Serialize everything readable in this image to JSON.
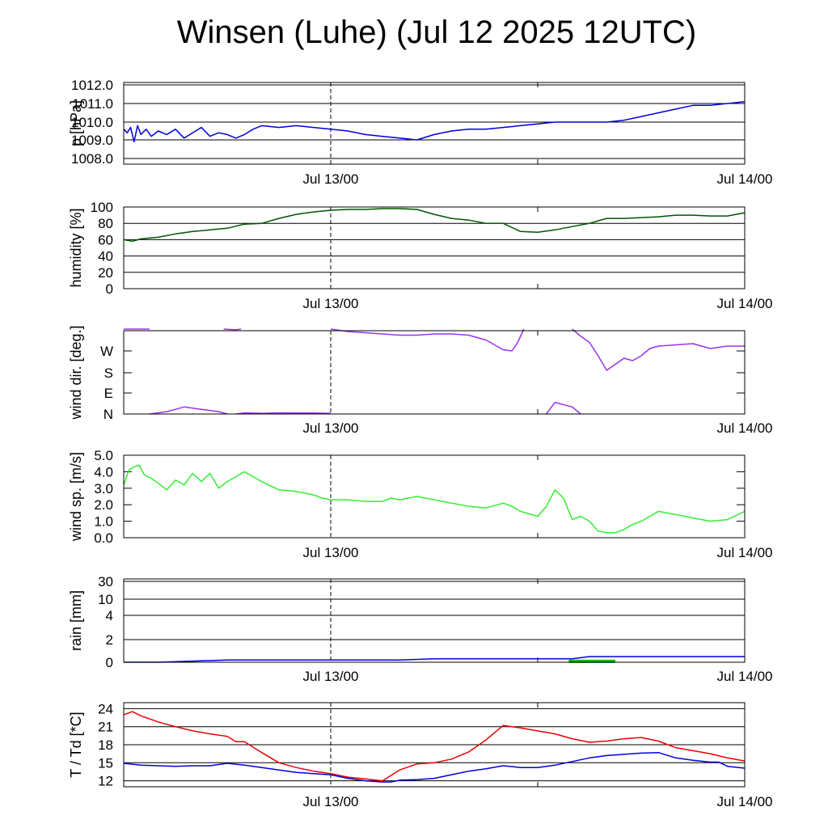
{
  "title": "Winsen (Luhe) (Jul 12 2025 12UTC)",
  "chart_data": [
    {
      "type": "line",
      "ylabel": "p [hPa]",
      "yticks": [
        "1012.0",
        "1011.0",
        "1010.0",
        "1009.0",
        "1008.0"
      ],
      "ytick_values": [
        1012,
        1011,
        1010,
        1009,
        1008
      ],
      "ylim": [
        1007.7,
        1012.1
      ],
      "xticks": [
        "Jul 13/00",
        "Jul 14/00"
      ],
      "x_unit": "hours since Jul 12 12UTC",
      "xlim": [
        0,
        36
      ],
      "series": [
        {
          "color": "#0000dd",
          "x": [
            0,
            0.2,
            0.4,
            0.6,
            0.8,
            1.0,
            1.3,
            1.6,
            2,
            2.5,
            3,
            3.5,
            4,
            4.5,
            5,
            5.5,
            6,
            6.5,
            7,
            7.5,
            8,
            9,
            10,
            11,
            12,
            13,
            14,
            15,
            16,
            17,
            18,
            19,
            20,
            21,
            22,
            23,
            24,
            25,
            26,
            27,
            28,
            29,
            30,
            31,
            32,
            33,
            34,
            35,
            36
          ],
          "y": [
            1009.6,
            1009.4,
            1009.7,
            1008.9,
            1009.8,
            1009.3,
            1009.6,
            1009.2,
            1009.5,
            1009.3,
            1009.6,
            1009.1,
            1009.4,
            1009.7,
            1009.2,
            1009.4,
            1009.3,
            1009.1,
            1009.3,
            1009.6,
            1009.8,
            1009.7,
            1009.8,
            1009.7,
            1009.6,
            1009.5,
            1009.3,
            1009.2,
            1009.1,
            1009.0,
            1009.3,
            1009.5,
            1009.6,
            1009.6,
            1009.7,
            1009.8,
            1009.9,
            1010.0,
            1010.0,
            1010.0,
            1010.0,
            1010.1,
            1010.3,
            1010.5,
            1010.7,
            1010.9,
            1010.9,
            1011.0,
            1011.1
          ]
        }
      ]
    },
    {
      "type": "line",
      "ylabel": "humidity [%]",
      "yticks": [
        "100",
        "80",
        "60",
        "40",
        "20",
        "0"
      ],
      "ytick_values": [
        100,
        80,
        60,
        40,
        20,
        0
      ],
      "ylim": [
        0,
        100
      ],
      "xticks": [
        "Jul 13/00",
        "Jul 14/00"
      ],
      "x_unit": "hours since Jul 12 12UTC",
      "xlim": [
        0,
        36
      ],
      "series": [
        {
          "color": "#005500",
          "x": [
            0,
            0.5,
            1,
            2,
            3,
            4,
            5,
            6,
            7,
            8,
            9,
            10,
            11,
            12,
            13,
            14,
            15,
            16,
            17,
            18,
            19,
            20,
            21,
            22,
            22.5,
            23,
            24,
            25,
            26,
            27,
            28,
            29,
            30,
            31,
            32,
            33,
            34,
            35,
            36
          ],
          "y": [
            60,
            58,
            61,
            63,
            67,
            70,
            72,
            74,
            79,
            80,
            86,
            91,
            94,
            96,
            97,
            97,
            98,
            98,
            97,
            91,
            86,
            84,
            80,
            80,
            75,
            70,
            69,
            72,
            76,
            80,
            86,
            86,
            87,
            88,
            90,
            90,
            89,
            89,
            93
          ]
        }
      ]
    },
    {
      "type": "line",
      "ylabel": "wind dir. [deg.]",
      "yticks": [
        "W",
        "S",
        "E",
        "N"
      ],
      "ytick_values": [
        270,
        180,
        90,
        0
      ],
      "ylim": [
        0,
        360
      ],
      "xticks": [
        "Jul 13/00",
        "Jul 14/00"
      ],
      "x_unit": "hours since Jul 12 12UTC",
      "xlim": [
        0,
        36
      ],
      "series": [
        {
          "color": "#9933ee",
          "segments": [
            {
              "x": [
                0,
                1.5
              ],
              "y": [
                360,
                360
              ]
            },
            {
              "x": [
                5.8,
                6.5,
                6.8
              ],
              "y": [
                360,
                357,
                360
              ]
            },
            {
              "x": [
                1.5,
                2.5,
                3.5,
                4.5,
                5.5,
                6.0
              ],
              "y": [
                0,
                10,
                30,
                20,
                10,
                0
              ]
            },
            {
              "x": [
                6.5,
                7,
                8,
                9,
                10,
                11,
                12
              ],
              "y": [
                0,
                5,
                3,
                5,
                4,
                4,
                3
              ]
            },
            {
              "x": [
                12,
                13,
                14,
                15,
                16,
                17,
                18,
                19,
                20,
                21,
                22,
                22.5,
                22.8,
                23.2
              ],
              "y": [
                360,
                350,
                345,
                340,
                335,
                335,
                340,
                340,
                335,
                315,
                275,
                270,
                300,
                360
              ]
            },
            {
              "x": [
                26,
                26.5,
                27,
                27.5,
                28,
                28.5,
                29,
                29.5,
                30,
                30.5,
                31,
                32,
                33,
                34,
                35,
                36
              ],
              "y": [
                360,
                330,
                305,
                250,
                190,
                215,
                240,
                230,
                250,
                280,
                290,
                295,
                300,
                280,
                290,
                290
              ]
            },
            {
              "x": [
                24.5,
                25,
                26,
                26.5
              ],
              "y": [
                0,
                50,
                30,
                0
              ]
            }
          ]
        }
      ]
    },
    {
      "type": "line",
      "ylabel": "wind sp. [m/s]",
      "yticks": [
        "5.0",
        "4.0",
        "3.0",
        "2.0",
        "1.0",
        "0.0"
      ],
      "ytick_values": [
        5,
        4,
        3,
        2,
        1,
        0
      ],
      "ylim": [
        0,
        5
      ],
      "xticks": [
        "Jul 13/00",
        "Jul 14/00"
      ],
      "x_unit": "hours since Jul 12 12UTC",
      "xlim": [
        0,
        36
      ],
      "series": [
        {
          "color": "#33ee33",
          "x": [
            0,
            0.3,
            0.6,
            0.9,
            1.2,
            1.6,
            2,
            2.5,
            3,
            3.5,
            4,
            4.5,
            5,
            5.5,
            6,
            6.5,
            7,
            8,
            9,
            10,
            11,
            11.5,
            12,
            13,
            14,
            15,
            15.5,
            16,
            17,
            18,
            19,
            20,
            21,
            22,
            22.5,
            23,
            24,
            24.5,
            25,
            25.5,
            26,
            26.5,
            27,
            27.5,
            28,
            28.5,
            29,
            29.5,
            30,
            31,
            32,
            33,
            34,
            35,
            36
          ],
          "y": [
            3.2,
            4.1,
            4.3,
            4.4,
            3.8,
            3.6,
            3.3,
            2.9,
            3.5,
            3.2,
            3.9,
            3.4,
            3.9,
            3.0,
            3.4,
            3.7,
            4.0,
            3.4,
            2.9,
            2.8,
            2.6,
            2.4,
            2.3,
            2.3,
            2.2,
            2.2,
            2.4,
            2.3,
            2.5,
            2.3,
            2.1,
            1.9,
            1.8,
            2.1,
            1.9,
            1.6,
            1.3,
            1.9,
            2.9,
            2.4,
            1.1,
            1.3,
            1.0,
            0.4,
            0.3,
            0.3,
            0.5,
            0.8,
            1.0,
            1.6,
            1.4,
            1.2,
            1.0,
            1.1,
            1.6
          ]
        }
      ]
    },
    {
      "type": "line",
      "ylabel": "rain [mm]",
      "yticks": [
        "30",
        "10",
        "4",
        "2",
        "0"
      ],
      "ytick_values": [
        30,
        10,
        4,
        2,
        0
      ],
      "ylim": [
        0,
        30
      ],
      "xticks": [
        "Jul 13/00",
        "Jul 14/00"
      ],
      "x_unit": "hours since Jul 12 12UTC",
      "xlim": [
        0,
        36
      ],
      "series": [
        {
          "color": "#0000dd",
          "x": [
            0,
            2,
            4,
            6,
            8,
            12,
            16,
            18,
            20,
            24,
            26,
            27,
            36
          ],
          "y": [
            0,
            0,
            0.1,
            0.2,
            0.2,
            0.2,
            0.2,
            0.3,
            0.3,
            0.3,
            0.3,
            0.5,
            0.5
          ]
        },
        {
          "color": "#00bb00",
          "x": [
            25.8,
            28.5
          ],
          "y": [
            0.08,
            0.08
          ]
        }
      ]
    },
    {
      "type": "line",
      "ylabel": "T / Td [*C]",
      "yticks": [
        "24",
        "21",
        "18",
        "15",
        "12"
      ],
      "ytick_values": [
        24,
        21,
        18,
        15,
        12
      ],
      "ylim": [
        11,
        25
      ],
      "xticks": [
        "Jul 13/00",
        "Jul 14/00"
      ],
      "x_unit": "hours since Jul 12 12UTC",
      "xlim": [
        0,
        36
      ],
      "series": [
        {
          "color": "#ee0000",
          "x": [
            0,
            0.5,
            1,
            1.5,
            2,
            3,
            4,
            5,
            6,
            6.5,
            7,
            8,
            9,
            10,
            11,
            12,
            13,
            14,
            15,
            16,
            17,
            18,
            19,
            20,
            21,
            22,
            23,
            24,
            25,
            26,
            27,
            28,
            29,
            30,
            31,
            32,
            33,
            34,
            35,
            36
          ],
          "y": [
            23.0,
            23.5,
            22.8,
            22.3,
            21.8,
            21.0,
            20.3,
            19.8,
            19.4,
            18.5,
            18.5,
            16.7,
            15.0,
            14.2,
            13.6,
            13.2,
            12.6,
            12.3,
            12.0,
            13.8,
            14.8,
            15.0,
            15.6,
            16.8,
            18.8,
            21.2,
            20.8,
            20.3,
            19.8,
            19.0,
            18.4,
            18.6,
            19.0,
            19.2,
            18.6,
            17.5,
            17.0,
            16.5,
            15.8,
            15.3
          ]
        },
        {
          "color": "#0000dd",
          "x": [
            0,
            1,
            2,
            3,
            4,
            5,
            6,
            7,
            8,
            9,
            10,
            11,
            12,
            13,
            14,
            15,
            15.5,
            16,
            17,
            18,
            19,
            20,
            21,
            22,
            23,
            24,
            25,
            26,
            27,
            28,
            29,
            30,
            31,
            32,
            33,
            34,
            34.5,
            35,
            36
          ],
          "y": [
            14.9,
            14.6,
            14.5,
            14.4,
            14.5,
            14.5,
            14.9,
            14.6,
            14.2,
            13.8,
            13.4,
            13.2,
            13.0,
            12.4,
            12.0,
            11.8,
            11.8,
            12.1,
            12.2,
            12.4,
            13.0,
            13.6,
            14.0,
            14.5,
            14.2,
            14.2,
            14.6,
            15.2,
            15.8,
            16.2,
            16.4,
            16.6,
            16.7,
            15.8,
            15.4,
            15.1,
            15.1,
            14.4,
            14.1
          ]
        }
      ]
    }
  ]
}
